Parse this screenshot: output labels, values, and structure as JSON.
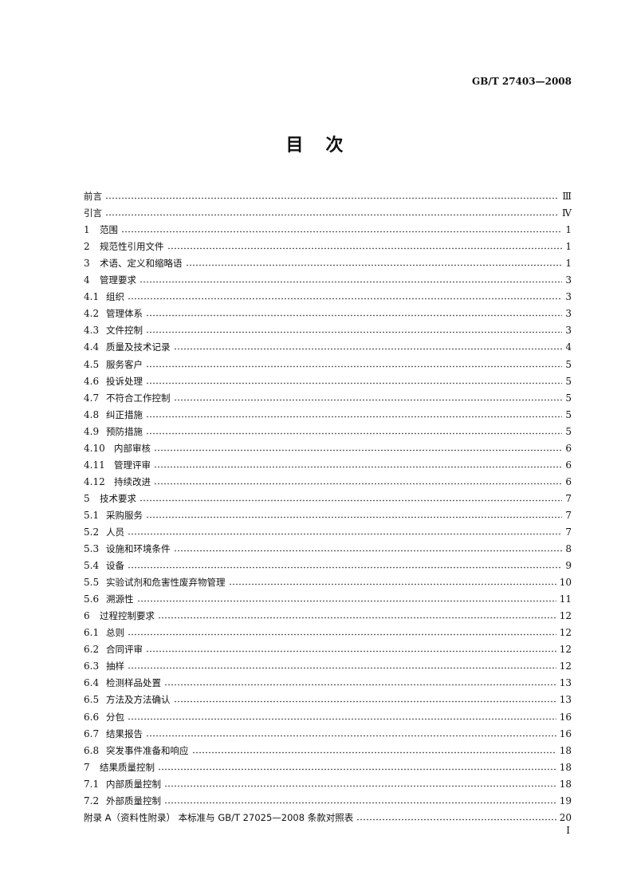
{
  "header": {
    "standard_code": "GB/T 27403—2008"
  },
  "title": "目次",
  "toc": [
    {
      "num": "",
      "label": "前言",
      "page": "Ⅲ"
    },
    {
      "num": "",
      "label": "引言",
      "page": "Ⅳ"
    },
    {
      "num": "1",
      "label": "范围",
      "page": "1"
    },
    {
      "num": "2",
      "label": "规范性引用文件",
      "page": "1"
    },
    {
      "num": "3",
      "label": "术语、定义和缩略语",
      "page": "1"
    },
    {
      "num": "4",
      "label": "管理要求",
      "page": "3"
    },
    {
      "num": "4.1",
      "label": "组织",
      "page": "3"
    },
    {
      "num": "4.2",
      "label": "管理体系",
      "page": "3"
    },
    {
      "num": "4.3",
      "label": "文件控制",
      "page": "3"
    },
    {
      "num": "4.4",
      "label": "质量及技术记录",
      "page": "4"
    },
    {
      "num": "4.5",
      "label": "服务客户",
      "page": "5"
    },
    {
      "num": "4.6",
      "label": "投诉处理",
      "page": "5"
    },
    {
      "num": "4.7",
      "label": "不符合工作控制",
      "page": "5"
    },
    {
      "num": "4.8",
      "label": "纠正措施",
      "page": "5"
    },
    {
      "num": "4.9",
      "label": "预防措施",
      "page": "5"
    },
    {
      "num": "4.10",
      "label": "内部审核",
      "page": "6"
    },
    {
      "num": "4.11",
      "label": "管理评审",
      "page": "6"
    },
    {
      "num": "4.12",
      "label": "持续改进",
      "page": "6"
    },
    {
      "num": "5",
      "label": "技术要求",
      "page": "7"
    },
    {
      "num": "5.1",
      "label": "采购服务",
      "page": "7"
    },
    {
      "num": "5.2",
      "label": "人员",
      "page": "7"
    },
    {
      "num": "5.3",
      "label": "设施和环境条件",
      "page": "8"
    },
    {
      "num": "5.4",
      "label": "设备",
      "page": "9"
    },
    {
      "num": "5.5",
      "label": "实验试剂和危害性废弃物管理",
      "page": "10"
    },
    {
      "num": "5.6",
      "label": "溯源性",
      "page": "11"
    },
    {
      "num": "6",
      "label": "过程控制要求",
      "page": "12"
    },
    {
      "num": "6.1",
      "label": "总则",
      "page": "12"
    },
    {
      "num": "6.2",
      "label": "合同评审",
      "page": "12"
    },
    {
      "num": "6.3",
      "label": "抽样",
      "page": "12"
    },
    {
      "num": "6.4",
      "label": "检测样品处置",
      "page": "13"
    },
    {
      "num": "6.5",
      "label": "方法及方法确认",
      "page": "13"
    },
    {
      "num": "6.6",
      "label": "分包",
      "page": "16"
    },
    {
      "num": "6.7",
      "label": "结果报告",
      "page": "16"
    },
    {
      "num": "6.8",
      "label": "突发事件准备和响应",
      "page": "18"
    },
    {
      "num": "7",
      "label": "结果质量控制",
      "page": "18"
    },
    {
      "num": "7.1",
      "label": "内部质量控制",
      "page": "18"
    },
    {
      "num": "7.2",
      "label": "外部质量控制",
      "page": "19"
    },
    {
      "num": "",
      "label": "附录 A（资料性附录）  本标准与 GB/T 27025—2008 条款对照表",
      "page": "20"
    }
  ],
  "footer": {
    "page_number": "I"
  }
}
